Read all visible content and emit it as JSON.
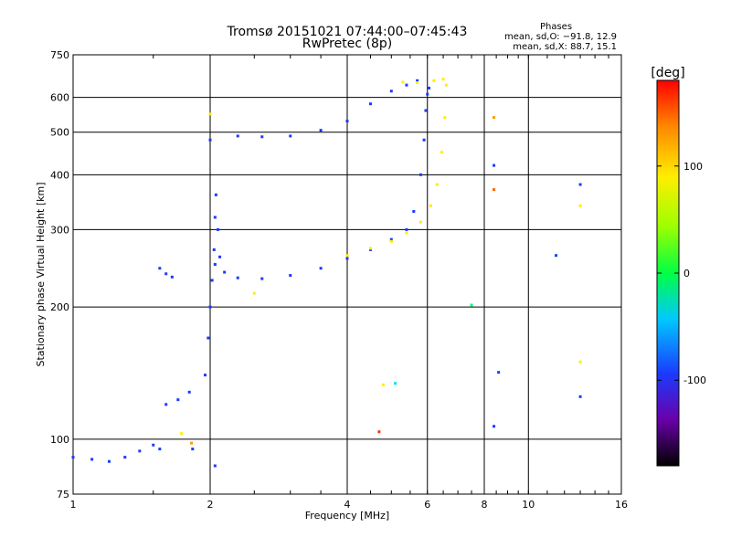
{
  "header": {
    "title": "Tromsø 20151021 07:44:00–07:45:43",
    "subtitle": "RwPretec (8p)",
    "stats_title": "Phases",
    "stats_o": "mean, sd,O: −91.8, 12.9",
    "stats_x": "mean, sd,X:  88.7, 15.1"
  },
  "chart_data": {
    "type": "scatter",
    "xlabel": "Frequency [MHz]",
    "ylabel": "Stationary phase Virtual Height [km]",
    "x_scale": "log",
    "y_scale": "log",
    "xlim": [
      1,
      16
    ],
    "ylim": [
      75,
      750
    ],
    "x_ticks": [
      1,
      2,
      4,
      6,
      8,
      10,
      16
    ],
    "y_ticks": [
      75,
      100,
      200,
      300,
      400,
      500,
      600,
      750
    ],
    "grid_x": [
      2,
      4,
      6,
      8,
      10
    ],
    "grid_y": [
      100,
      200,
      300,
      400,
      500,
      600
    ],
    "colorbar": {
      "label": "[deg]",
      "range": [
        -180,
        180
      ],
      "ticks": [
        100,
        0,
        -100
      ]
    },
    "series": [
      {
        "mode": "O",
        "color": "#1a3bff",
        "points": [
          [
            1.0,
            91
          ],
          [
            1.1,
            90
          ],
          [
            1.2,
            89
          ],
          [
            1.3,
            91
          ],
          [
            1.4,
            94
          ],
          [
            1.5,
            97
          ],
          [
            1.55,
            95
          ],
          [
            1.6,
            120
          ],
          [
            1.7,
            123
          ],
          [
            1.8,
            128
          ],
          [
            1.83,
            95
          ],
          [
            1.95,
            140
          ],
          [
            1.98,
            170
          ],
          [
            2.0,
            200
          ],
          [
            2.02,
            230
          ],
          [
            2.04,
            270
          ],
          [
            2.05,
            320
          ],
          [
            2.06,
            360
          ],
          [
            2.08,
            300
          ],
          [
            2.1,
            260
          ],
          [
            2.05,
            250
          ],
          [
            1.55,
            245
          ],
          [
            1.6,
            238
          ],
          [
            1.65,
            234
          ],
          [
            2.15,
            240
          ],
          [
            2.3,
            233
          ],
          [
            2.6,
            232
          ],
          [
            3.0,
            236
          ],
          [
            3.5,
            245
          ],
          [
            4.0,
            258
          ],
          [
            4.5,
            270
          ],
          [
            5.0,
            285
          ],
          [
            5.4,
            300
          ],
          [
            5.6,
            330
          ],
          [
            5.8,
            400
          ],
          [
            5.9,
            480
          ],
          [
            5.95,
            560
          ],
          [
            6.0,
            610
          ],
          [
            6.05,
            630
          ],
          [
            2.0,
            480
          ],
          [
            2.3,
            490
          ],
          [
            2.6,
            488
          ],
          [
            3.0,
            490
          ],
          [
            3.5,
            505
          ],
          [
            4.0,
            530
          ],
          [
            4.5,
            580
          ],
          [
            5.0,
            620
          ],
          [
            5.4,
            640
          ],
          [
            5.7,
            655
          ]
        ]
      },
      {
        "mode": "X",
        "color": "#ffee00",
        "points": [
          [
            4.0,
            262
          ],
          [
            4.5,
            272
          ],
          [
            5.0,
            282
          ],
          [
            5.4,
            295
          ],
          [
            5.8,
            312
          ],
          [
            6.1,
            340
          ],
          [
            6.3,
            380
          ],
          [
            6.45,
            450
          ],
          [
            6.55,
            540
          ],
          [
            6.6,
            640
          ],
          [
            5.3,
            650
          ],
          [
            5.7,
            648
          ],
          [
            6.2,
            655
          ],
          [
            6.5,
            660
          ]
        ]
      }
    ],
    "scattered_points": [
      {
        "x": 1.73,
        "y": 103,
        "color": "#ffee00"
      },
      {
        "x": 1.82,
        "y": 98,
        "color": "#ff9900"
      },
      {
        "x": 2.05,
        "y": 87,
        "color": "#1a3bff"
      },
      {
        "x": 2.0,
        "y": 550,
        "color": "#ffee00"
      },
      {
        "x": 2.5,
        "y": 215,
        "color": "#ffee00"
      },
      {
        "x": 4.7,
        "y": 104,
        "color": "#ff3300"
      },
      {
        "x": 4.8,
        "y": 133,
        "color": "#ffee00"
      },
      {
        "x": 5.1,
        "y": 134,
        "color": "#00ddff"
      },
      {
        "x": 8.4,
        "y": 107,
        "color": "#1a3bff"
      },
      {
        "x": 8.6,
        "y": 142,
        "color": "#1a3bff"
      },
      {
        "x": 8.4,
        "y": 540,
        "color": "#ff9900"
      },
      {
        "x": 8.4,
        "y": 370,
        "color": "#ff6600"
      },
      {
        "x": 8.4,
        "y": 420,
        "color": "#1a3bff"
      },
      {
        "x": 11.5,
        "y": 262,
        "color": "#1a3bff"
      },
      {
        "x": 13.0,
        "y": 380,
        "color": "#1a3bff"
      },
      {
        "x": 13.0,
        "y": 340,
        "color": "#ffee00"
      },
      {
        "x": 13.0,
        "y": 150,
        "color": "#ffee00"
      },
      {
        "x": 13.0,
        "y": 125,
        "color": "#1a3bff"
      },
      {
        "x": 7.5,
        "y": 202,
        "color": "#00ff88"
      }
    ]
  }
}
